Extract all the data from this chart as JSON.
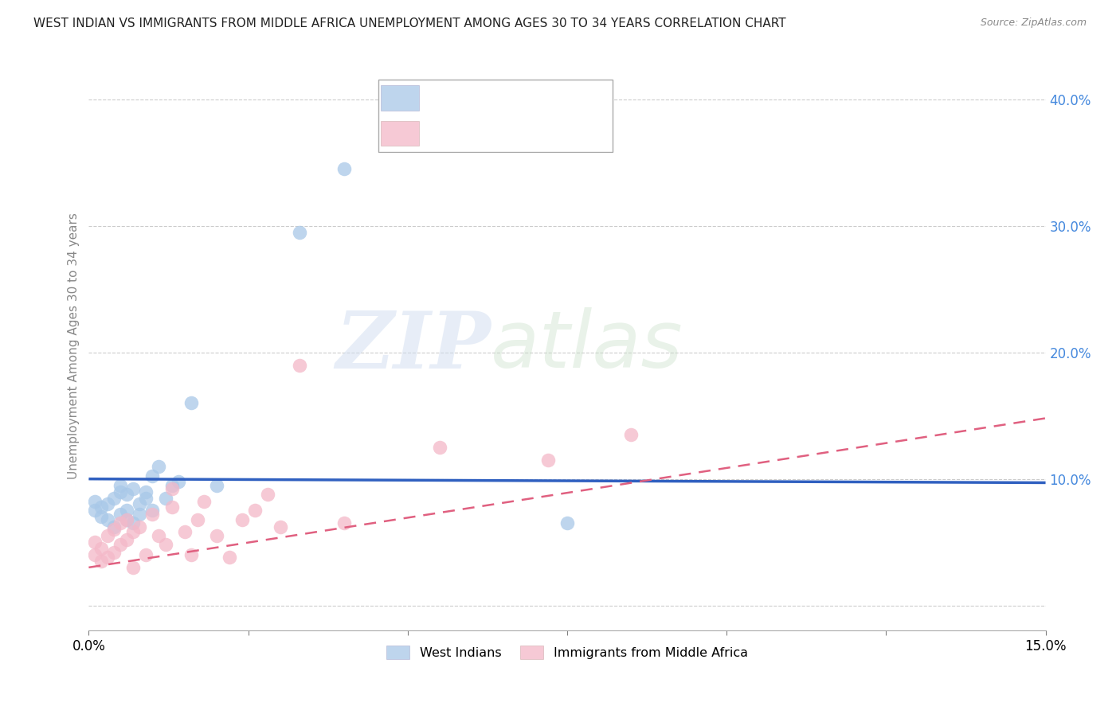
{
  "title": "WEST INDIAN VS IMMIGRANTS FROM MIDDLE AFRICA UNEMPLOYMENT AMONG AGES 30 TO 34 YEARS CORRELATION CHART",
  "source": "Source: ZipAtlas.com",
  "ylabel": "Unemployment Among Ages 30 to 34 years",
  "y_ticks": [
    0.0,
    0.1,
    0.2,
    0.3,
    0.4
  ],
  "y_tick_labels": [
    "",
    "10.0%",
    "20.0%",
    "30.0%",
    "40.0%"
  ],
  "x_lim": [
    0.0,
    0.15
  ],
  "y_lim": [
    -0.02,
    0.43
  ],
  "legend1_label": "West Indians",
  "legend2_label": "Immigrants from Middle Africa",
  "blue_color": "#a8c8e8",
  "pink_color": "#f4b8c8",
  "blue_line_color": "#3060c0",
  "pink_line_color": "#e06080",
  "watermark_zip": "ZIP",
  "watermark_atlas": "atlas",
  "west_indians_x": [
    0.001,
    0.001,
    0.002,
    0.002,
    0.003,
    0.003,
    0.004,
    0.004,
    0.005,
    0.005,
    0.005,
    0.006,
    0.006,
    0.006,
    0.007,
    0.007,
    0.008,
    0.008,
    0.009,
    0.009,
    0.01,
    0.01,
    0.011,
    0.012,
    0.013,
    0.014,
    0.016,
    0.02,
    0.033,
    0.04,
    0.075
  ],
  "west_indians_y": [
    0.075,
    0.082,
    0.07,
    0.078,
    0.068,
    0.08,
    0.062,
    0.085,
    0.072,
    0.09,
    0.095,
    0.068,
    0.075,
    0.088,
    0.065,
    0.092,
    0.072,
    0.08,
    0.085,
    0.09,
    0.075,
    0.102,
    0.11,
    0.085,
    0.095,
    0.098,
    0.16,
    0.095,
    0.295,
    0.345,
    0.065
  ],
  "middle_africa_x": [
    0.001,
    0.001,
    0.002,
    0.002,
    0.003,
    0.003,
    0.004,
    0.004,
    0.005,
    0.005,
    0.006,
    0.006,
    0.007,
    0.007,
    0.008,
    0.009,
    0.01,
    0.011,
    0.012,
    0.013,
    0.013,
    0.015,
    0.016,
    0.017,
    0.018,
    0.02,
    0.022,
    0.024,
    0.026,
    0.028,
    0.03,
    0.033,
    0.04,
    0.055,
    0.072,
    0.085
  ],
  "middle_africa_y": [
    0.04,
    0.05,
    0.035,
    0.045,
    0.038,
    0.055,
    0.042,
    0.06,
    0.048,
    0.065,
    0.052,
    0.068,
    0.03,
    0.058,
    0.062,
    0.04,
    0.072,
    0.055,
    0.048,
    0.078,
    0.092,
    0.058,
    0.04,
    0.068,
    0.082,
    0.055,
    0.038,
    0.068,
    0.075,
    0.088,
    0.062,
    0.19,
    0.065,
    0.125,
    0.115,
    0.135
  ],
  "wi_trend_x": [
    0.0,
    0.15
  ],
  "wi_trend_y": [
    0.1,
    0.097
  ],
  "ma_trend_x": [
    0.0,
    0.15
  ],
  "ma_trend_y": [
    0.03,
    0.148
  ]
}
